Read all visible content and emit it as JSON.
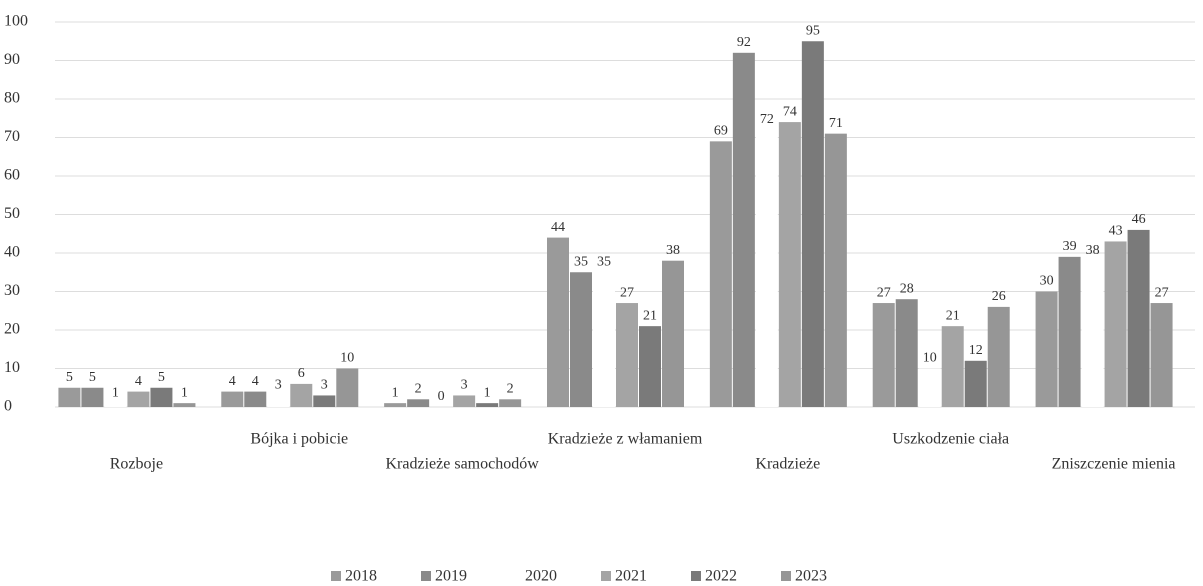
{
  "chart_data": {
    "type": "bar",
    "categories": [
      "Rozboje",
      "Bójka i pobicie",
      "Kradzieże samochodów",
      "Kradzieże z włamaniem",
      "Kradzieże",
      "Uszkodzenie ciała",
      "Zniszczenie mienia"
    ],
    "series": [
      {
        "name": "2018",
        "color": "#9a9a9a",
        "values": [
          5,
          4,
          1,
          44,
          69,
          27,
          30
        ]
      },
      {
        "name": "2019",
        "color": "#8a8a8a",
        "values": [
          5,
          4,
          2,
          35,
          92,
          28,
          39
        ]
      },
      {
        "name": "2020",
        "color": "#ffffff",
        "values": [
          1,
          3,
          0,
          35,
          72,
          10,
          38
        ]
      },
      {
        "name": "2021",
        "color": "#a4a4a4",
        "values": [
          4,
          6,
          3,
          27,
          74,
          21,
          43
        ]
      },
      {
        "name": "2022",
        "color": "#7a7a7a",
        "values": [
          5,
          3,
          1,
          21,
          95,
          12,
          46
        ]
      },
      {
        "name": "2023",
        "color": "#969696",
        "values": [
          1,
          10,
          2,
          38,
          71,
          26,
          27
        ]
      }
    ],
    "ylim": [
      0,
      100
    ],
    "yticks": [
      0,
      10,
      20,
      30,
      40,
      50,
      60,
      70,
      80,
      90,
      100
    ],
    "grid": true,
    "legend": "bottom"
  }
}
